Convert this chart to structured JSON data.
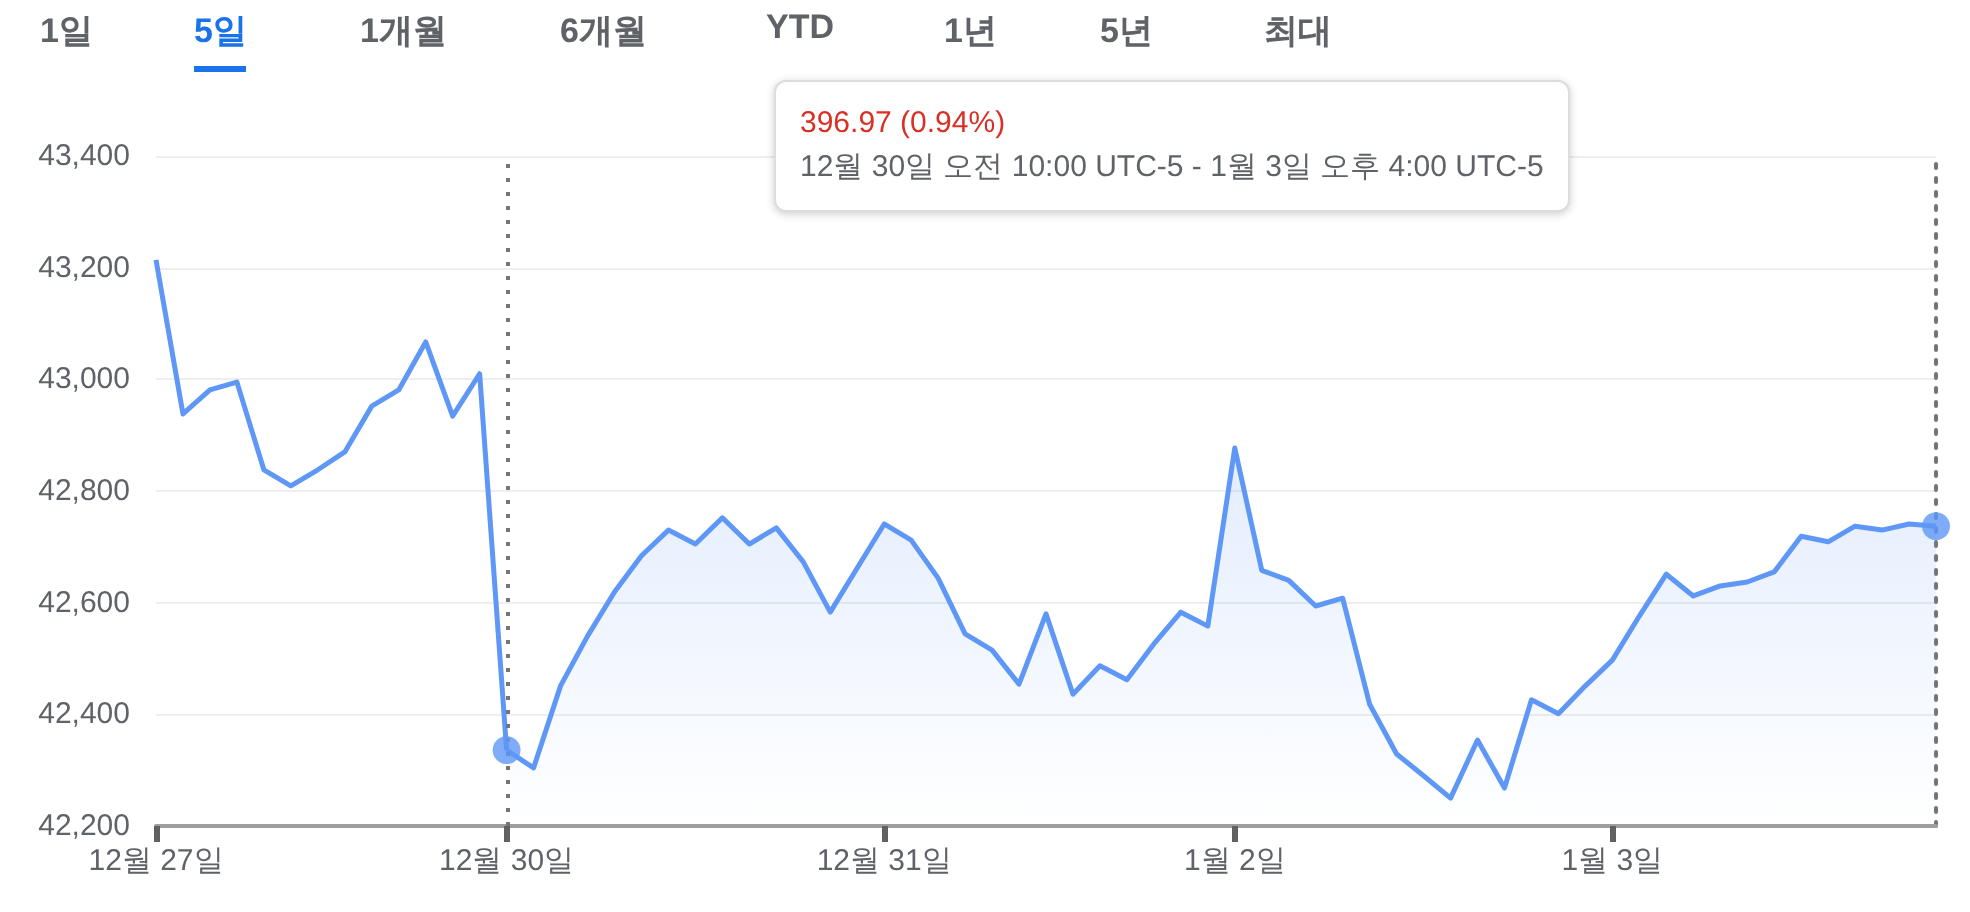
{
  "chart_data": {
    "type": "line",
    "categories": [
      "12월 27일",
      null,
      null,
      null,
      null,
      null,
      null,
      null,
      null,
      null,
      null,
      null,
      null,
      "12월 30일",
      null,
      null,
      null,
      null,
      null,
      null,
      null,
      null,
      null,
      null,
      null,
      null,
      null,
      "12월 31일",
      null,
      null,
      null,
      null,
      null,
      null,
      null,
      null,
      null,
      null,
      null,
      null,
      "1월 2일",
      null,
      null,
      null,
      null,
      null,
      null,
      null,
      null,
      null,
      null,
      null,
      null,
      null,
      "1월 3일",
      null,
      null,
      null,
      null,
      null,
      null,
      null,
      null,
      null,
      null,
      null,
      null
    ],
    "series": [
      {
        "color": "#5e97f6",
        "values": [
          43214,
          42938,
          42981,
          42995,
          42838,
          42809,
          42838,
          42870,
          42952,
          42981,
          43067,
          42934,
          43010,
          42336,
          null,
          null,
          null,
          null,
          null,
          null,
          null,
          null,
          null,
          null,
          null,
          null,
          null,
          null,
          null,
          null,
          null,
          null,
          null,
          null,
          null,
          null,
          null,
          null,
          null,
          null,
          null,
          null,
          null,
          null,
          null,
          null,
          null,
          null,
          null,
          null,
          null,
          null,
          null,
          null,
          null,
          null,
          null,
          null,
          null,
          null,
          null,
          null,
          null,
          null,
          null,
          null,
          null
        ]
      },
      {
        "type": "area",
        "color": "#5e97f6",
        "values": [
          null,
          null,
          null,
          null,
          null,
          null,
          null,
          null,
          null,
          null,
          null,
          null,
          null,
          42336,
          42304,
          42451,
          42540,
          42619,
          42684,
          42730,
          42705,
          42752,
          42705,
          42734,
          42673,
          42583,
          42662,
          42741,
          42712,
          42644,
          42544,
          42515,
          42454,
          42580,
          42436,
          42487,
          42462,
          42526,
          42583,
          42558,
          42877,
          42658,
          42640,
          42594,
          42608,
          42418,
          42329,
          42290,
          42250,
          42354,
          42268,
          42426,
          42401,
          42451,
          42497,
          42576,
          42651,
          42612,
          42630,
          42637,
          42655,
          42719,
          42709,
          42737,
          42730,
          42741,
          42737
        ]
      },
      {
        "type": "scatter",
        "color": "#5e97f6",
        "marker": "circle",
        "values": [
          null,
          null,
          null,
          null,
          null,
          null,
          null,
          null,
          null,
          null,
          null,
          null,
          null,
          42336,
          null,
          null,
          null,
          null,
          null,
          null,
          null,
          null,
          null,
          null,
          null,
          null,
          null,
          null,
          null,
          null,
          null,
          null,
          null,
          null,
          null,
          null,
          null,
          null,
          null,
          null,
          null,
          null,
          null,
          null,
          null,
          null,
          null,
          null,
          null,
          null,
          null,
          null,
          null,
          null,
          null,
          null,
          null,
          null,
          null,
          null,
          null,
          null,
          null,
          null,
          null,
          null,
          42737
        ]
      }
    ],
    "ylim": [
      42200,
      43400
    ],
    "yticks": [
      {
        "value": 42200,
        "label": "42,200"
      },
      {
        "value": 42400,
        "label": "42,400"
      },
      {
        "value": 42600,
        "label": "42,600"
      },
      {
        "value": 42800,
        "label": "42,800"
      },
      {
        "value": 43000,
        "label": "43,000"
      },
      {
        "value": 43200,
        "label": "43,200"
      },
      {
        "value": 43400,
        "label": "43,400"
      }
    ],
    "grid": "y",
    "marker": "none",
    "ref_lines": [
      {
        "axis": "x",
        "value": "12월 30일",
        "color": "#757575",
        "line_style": "dotted"
      }
    ],
    "annotations": [
      "1일",
      "5일",
      "1개월",
      "6개월",
      "YTD",
      "1년",
      "5년",
      "최대",
      "396.97 (0.94%)",
      "12월 30일 오전 10:00 UTC-5 - 1월 3일 오후 4:00 UTC-5"
    ]
  }
}
